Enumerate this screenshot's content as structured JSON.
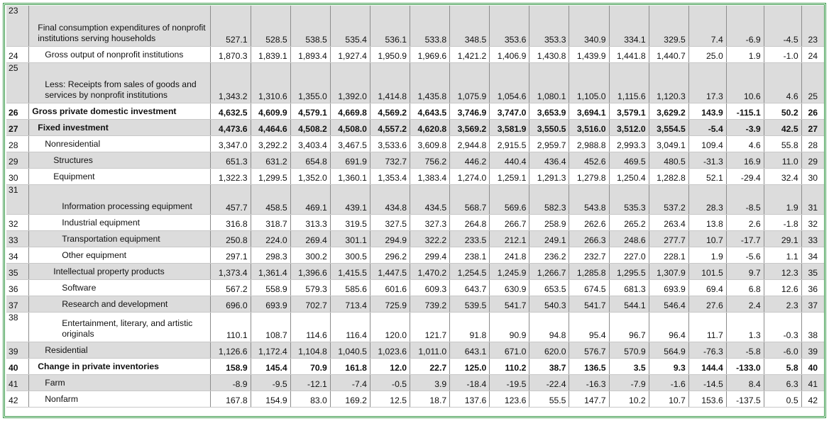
{
  "rows": [
    {
      "line": "23",
      "indent": 1,
      "bold": false,
      "shade": true,
      "label": "Final consumption expenditures of nonprofit institutions serving households",
      "values": [
        "527.1",
        "528.5",
        "538.5",
        "535.4",
        "536.1",
        "533.8",
        "348.5",
        "353.6",
        "353.3",
        "340.9",
        "334.1",
        "329.5",
        "7.4",
        "-6.9",
        "-4.5"
      ]
    },
    {
      "line": "24",
      "indent": 2,
      "bold": false,
      "shade": false,
      "label": "Gross output of nonprofit institutions",
      "values": [
        "1,870.3",
        "1,839.1",
        "1,893.4",
        "1,927.4",
        "1,950.9",
        "1,969.6",
        "1,421.2",
        "1,406.9",
        "1,430.8",
        "1,439.9",
        "1,441.8",
        "1,440.7",
        "25.0",
        "1.9",
        "-1.0"
      ]
    },
    {
      "line": "25",
      "indent": 2,
      "bold": false,
      "shade": true,
      "label": "Less: Receipts from sales of goods and services by nonprofit institutions",
      "values": [
        "1,343.2",
        "1,310.6",
        "1,355.0",
        "1,392.0",
        "1,414.8",
        "1,435.8",
        "1,075.9",
        "1,054.6",
        "1,080.1",
        "1,105.0",
        "1,115.6",
        "1,120.3",
        "17.3",
        "10.6",
        "4.6"
      ]
    },
    {
      "line": "26",
      "indent": 0,
      "bold": true,
      "shade": false,
      "label": "Gross private domestic investment",
      "values": [
        "4,632.5",
        "4,609.9",
        "4,579.1",
        "4,669.8",
        "4,569.2",
        "4,643.5",
        "3,746.9",
        "3,747.0",
        "3,653.9",
        "3,694.1",
        "3,579.1",
        "3,629.2",
        "143.9",
        "-115.1",
        "50.2"
      ]
    },
    {
      "line": "27",
      "indent": 1,
      "bold": true,
      "shade": true,
      "label": "Fixed investment",
      "values": [
        "4,473.6",
        "4,464.6",
        "4,508.2",
        "4,508.0",
        "4,557.2",
        "4,620.8",
        "3,569.2",
        "3,581.9",
        "3,550.5",
        "3,516.0",
        "3,512.0",
        "3,554.5",
        "-5.4",
        "-3.9",
        "42.5"
      ]
    },
    {
      "line": "28",
      "indent": 2,
      "bold": false,
      "shade": false,
      "label": "Nonresidential",
      "values": [
        "3,347.0",
        "3,292.2",
        "3,403.4",
        "3,467.5",
        "3,533.6",
        "3,609.8",
        "2,944.8",
        "2,915.5",
        "2,959.7",
        "2,988.8",
        "2,993.3",
        "3,049.1",
        "109.4",
        "4.6",
        "55.8"
      ]
    },
    {
      "line": "29",
      "indent": 3,
      "bold": false,
      "shade": true,
      "label": "Structures",
      "values": [
        "651.3",
        "631.2",
        "654.8",
        "691.9",
        "732.7",
        "756.2",
        "446.2",
        "440.4",
        "436.4",
        "452.6",
        "469.5",
        "480.5",
        "-31.3",
        "16.9",
        "11.0"
      ]
    },
    {
      "line": "30",
      "indent": 3,
      "bold": false,
      "shade": false,
      "label": "Equipment",
      "values": [
        "1,322.3",
        "1,299.5",
        "1,352.0",
        "1,360.1",
        "1,353.4",
        "1,383.4",
        "1,274.0",
        "1,259.1",
        "1,291.3",
        "1,279.8",
        "1,250.4",
        "1,282.8",
        "52.1",
        "-29.4",
        "32.4"
      ]
    },
    {
      "line": "31",
      "indent": 4,
      "bold": false,
      "shade": true,
      "label": "Information processing equipment",
      "values": [
        "457.7",
        "458.5",
        "469.1",
        "439.1",
        "434.8",
        "434.5",
        "568.7",
        "569.6",
        "582.3",
        "543.8",
        "535.3",
        "537.2",
        "28.3",
        "-8.5",
        "1.9"
      ]
    },
    {
      "line": "32",
      "indent": 4,
      "bold": false,
      "shade": false,
      "label": "Industrial equipment",
      "values": [
        "316.8",
        "318.7",
        "313.3",
        "319.5",
        "327.5",
        "327.3",
        "264.8",
        "266.7",
        "258.9",
        "262.6",
        "265.2",
        "263.4",
        "13.8",
        "2.6",
        "-1.8"
      ]
    },
    {
      "line": "33",
      "indent": 4,
      "bold": false,
      "shade": true,
      "label": "Transportation equipment",
      "values": [
        "250.8",
        "224.0",
        "269.4",
        "301.1",
        "294.9",
        "322.2",
        "233.5",
        "212.1",
        "249.1",
        "266.3",
        "248.6",
        "277.7",
        "10.7",
        "-17.7",
        "29.1"
      ]
    },
    {
      "line": "34",
      "indent": 4,
      "bold": false,
      "shade": false,
      "label": "Other equipment",
      "values": [
        "297.1",
        "298.3",
        "300.2",
        "300.5",
        "296.2",
        "299.4",
        "238.1",
        "241.8",
        "236.2",
        "232.7",
        "227.0",
        "228.1",
        "1.9",
        "-5.6",
        "1.1"
      ]
    },
    {
      "line": "35",
      "indent": 3,
      "bold": false,
      "shade": true,
      "label": "Intellectual property products",
      "values": [
        "1,373.4",
        "1,361.4",
        "1,396.6",
        "1,415.5",
        "1,447.5",
        "1,470.2",
        "1,254.5",
        "1,245.9",
        "1,266.7",
        "1,285.8",
        "1,295.5",
        "1,307.9",
        "101.5",
        "9.7",
        "12.3"
      ]
    },
    {
      "line": "36",
      "indent": 4,
      "bold": false,
      "shade": false,
      "label": "Software",
      "values": [
        "567.2",
        "558.9",
        "579.3",
        "585.6",
        "601.6",
        "609.3",
        "643.7",
        "630.9",
        "653.5",
        "674.5",
        "681.3",
        "693.9",
        "69.4",
        "6.8",
        "12.6"
      ]
    },
    {
      "line": "37",
      "indent": 4,
      "bold": false,
      "shade": true,
      "label": "Research and development",
      "values": [
        "696.0",
        "693.9",
        "702.7",
        "713.4",
        "725.9",
        "739.2",
        "539.5",
        "541.7",
        "540.3",
        "541.7",
        "544.1",
        "546.4",
        "27.6",
        "2.4",
        "2.3"
      ]
    },
    {
      "line": "38",
      "indent": 4,
      "bold": false,
      "shade": false,
      "label": "Entertainment, literary, and artistic originals",
      "values": [
        "110.1",
        "108.7",
        "114.6",
        "116.4",
        "120.0",
        "121.7",
        "91.8",
        "90.9",
        "94.8",
        "95.4",
        "96.7",
        "96.4",
        "11.7",
        "1.3",
        "-0.3"
      ]
    },
    {
      "line": "39",
      "indent": 2,
      "bold": false,
      "shade": true,
      "label": "Residential",
      "values": [
        "1,126.6",
        "1,172.4",
        "1,104.8",
        "1,040.5",
        "1,023.6",
        "1,011.0",
        "643.1",
        "671.0",
        "620.0",
        "576.7",
        "570.9",
        "564.9",
        "-76.3",
        "-5.8",
        "-6.0"
      ]
    },
    {
      "line": "40",
      "indent": 1,
      "bold": true,
      "shade": false,
      "label": "Change in private inventories",
      "values": [
        "158.9",
        "145.4",
        "70.9",
        "161.8",
        "12.0",
        "22.7",
        "125.0",
        "110.2",
        "38.7",
        "136.5",
        "3.5",
        "9.3",
        "144.4",
        "-133.0",
        "5.8"
      ]
    },
    {
      "line": "41",
      "indent": 2,
      "bold": false,
      "shade": true,
      "label": "Farm",
      "values": [
        "-8.9",
        "-9.5",
        "-12.1",
        "-7.4",
        "-0.5",
        "3.9",
        "-18.4",
        "-19.5",
        "-22.4",
        "-16.3",
        "-7.9",
        "-1.6",
        "-14.5",
        "8.4",
        "6.3"
      ]
    },
    {
      "line": "42",
      "indent": 2,
      "bold": false,
      "shade": false,
      "label": "Nonfarm",
      "values": [
        "167.8",
        "154.9",
        "83.0",
        "169.2",
        "12.5",
        "18.7",
        "137.6",
        "123.6",
        "55.5",
        "147.7",
        "10.2",
        "10.7",
        "153.6",
        "-137.5",
        "0.5"
      ]
    }
  ]
}
